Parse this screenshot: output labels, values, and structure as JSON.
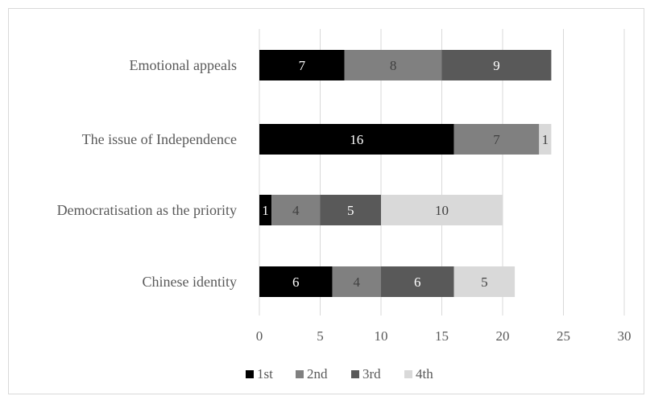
{
  "chart_data": {
    "type": "bar",
    "orientation": "horizontal",
    "stacked": true,
    "categories": [
      "Emotional appeals",
      "The issue of Independence",
      "Democratisation as the priority",
      "Chinese identity"
    ],
    "series": [
      {
        "name": "1st",
        "values": [
          7,
          16,
          1,
          6
        ],
        "color": "#000000",
        "label_color": "#ffffff"
      },
      {
        "name": "2nd",
        "values": [
          8,
          7,
          4,
          4
        ],
        "color": "#808080",
        "label_color": "#404040"
      },
      {
        "name": "3rd",
        "values": [
          9,
          0,
          5,
          6
        ],
        "color": "#595959",
        "label_color": "#ffffff"
      },
      {
        "name": "4th",
        "values": [
          0,
          1,
          10,
          5
        ],
        "color": "#d9d9d9",
        "label_color": "#404040"
      }
    ],
    "xlim": [
      0,
      30
    ],
    "x_ticks": [
      "0",
      "5",
      "10",
      "15",
      "20",
      "25",
      "30"
    ],
    "grid": true,
    "legend_position": "bottom",
    "title": "",
    "xlabel": "",
    "ylabel": ""
  }
}
